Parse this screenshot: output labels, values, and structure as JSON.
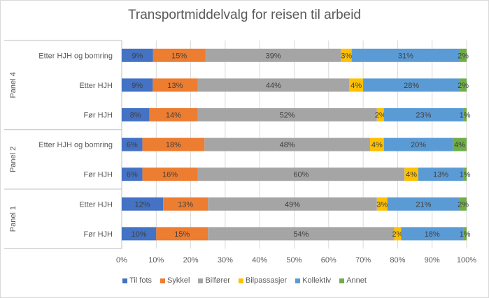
{
  "chart_data": {
    "type": "bar",
    "orientation": "horizontal",
    "stacked": true,
    "title": "Transportmiddelvalg for reisen til arbeid",
    "groups": [
      {
        "label": "Panel 4",
        "categories": [
          "Etter HJH og bomring",
          "Etter HJH",
          "Før HJH"
        ]
      },
      {
        "label": "Panel 2",
        "categories": [
          "Etter HJH og bomring",
          "Før HJH"
        ]
      },
      {
        "label": "Panel 1",
        "categories": [
          "Etter HJH",
          "Før HJH"
        ]
      }
    ],
    "series": [
      {
        "name": "Til fots",
        "color": "#4472c4",
        "values": [
          9,
          9,
          8,
          6,
          6,
          12,
          10
        ],
        "labels": [
          "9%",
          "9%",
          "8%",
          "6%",
          "6%",
          "12%",
          "10%"
        ]
      },
      {
        "name": "Sykkel",
        "color": "#ed7d31",
        "values": [
          15,
          13,
          14,
          18,
          16,
          13,
          15
        ],
        "labels": [
          "15%",
          "13%",
          "14%",
          "18%",
          "16%",
          "13%",
          "15%"
        ]
      },
      {
        "name": "Bilfører",
        "color": "#a5a5a5",
        "values": [
          39,
          44,
          52,
          48,
          60,
          49,
          54
        ],
        "labels": [
          "39%",
          "44%",
          "52%",
          "48%",
          "60%",
          "49%",
          "54%"
        ]
      },
      {
        "name": "Bilpassasjer",
        "color": "#ffc000",
        "values": [
          3,
          4,
          2,
          4,
          4,
          3,
          2
        ],
        "labels": [
          "3%",
          "4%",
          "2%",
          "4%",
          "4%",
          "3%",
          "2%"
        ]
      },
      {
        "name": "Kollektiv",
        "color": "#5b9bd5",
        "values": [
          31,
          28,
          23,
          20,
          13,
          21,
          18
        ],
        "labels": [
          "31%",
          "28%",
          "23%",
          "20%",
          "13%",
          "21%",
          "18%"
        ]
      },
      {
        "name": "Annet",
        "color": "#70ad47",
        "values": [
          2,
          2,
          1,
          4,
          1,
          2,
          1
        ],
        "labels": [
          "2%",
          "2%",
          "1%",
          "4%",
          "1%",
          "2%",
          "1%"
        ]
      }
    ],
    "xticks": [
      "0%",
      "10%",
      "20%",
      "30%",
      "40%",
      "50%",
      "60%",
      "70%",
      "80%",
      "90%",
      "100%"
    ],
    "xlim": [
      0,
      100
    ],
    "grid": true,
    "legend_position": "bottom"
  }
}
